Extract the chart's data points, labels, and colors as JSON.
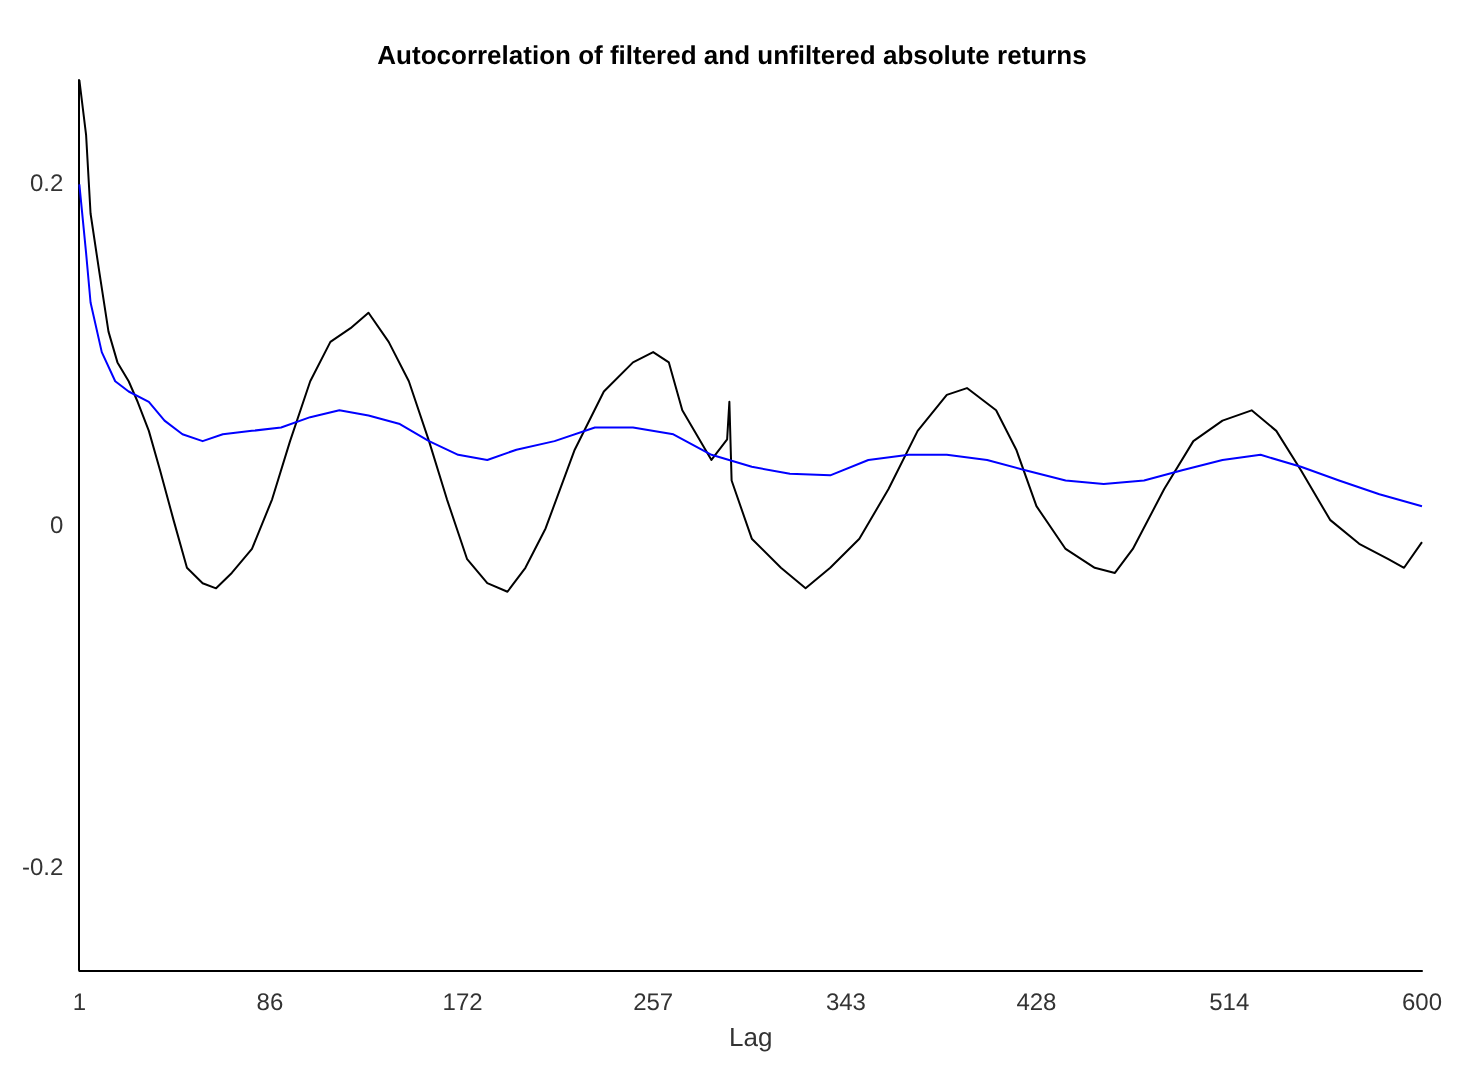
{
  "chart_data": {
    "type": "line",
    "title": "Autocorrelation of filtered and unfiltered absolute returns",
    "xlabel": "Lag",
    "xlim": [
      1,
      600
    ],
    "xticks": [
      1,
      86,
      172,
      257,
      343,
      428,
      514,
      600
    ],
    "ylim": [
      -0.26,
      0.26
    ],
    "yticks": [
      -0.2,
      0,
      0.2
    ],
    "grid": false,
    "marker": "none",
    "line_style": "solid",
    "series": [
      {
        "color": "#000000",
        "x": [
          1,
          4,
          6,
          10,
          14,
          18,
          23,
          27,
          32,
          37,
          43,
          49,
          56,
          62,
          69,
          78,
          87,
          95,
          104,
          113,
          122,
          130,
          139,
          148,
          157,
          165,
          174,
          183,
          192,
          200,
          209,
          222,
          235,
          248,
          257,
          264,
          270,
          283,
          290,
          291,
          292,
          301,
          314,
          325,
          336,
          349,
          362,
          375,
          388,
          397,
          410,
          419,
          428,
          441,
          454,
          463,
          471,
          485,
          498,
          511,
          524,
          535,
          546,
          559,
          572,
          585,
          592,
          600
        ],
        "values": [
          0.26,
          0.228,
          0.182,
          0.147,
          0.113,
          0.095,
          0.084,
          0.072,
          0.055,
          0.032,
          0.003,
          -0.025,
          -0.034,
          -0.037,
          -0.028,
          -0.014,
          0.015,
          0.049,
          0.084,
          0.107,
          0.115,
          0.124,
          0.107,
          0.084,
          0.049,
          0.015,
          -0.02,
          -0.034,
          -0.039,
          -0.025,
          -0.002,
          0.044,
          0.078,
          0.095,
          0.101,
          0.095,
          0.067,
          0.038,
          0.05,
          0.072,
          0.026,
          -0.008,
          -0.025,
          -0.037,
          -0.025,
          -0.008,
          0.021,
          0.055,
          0.076,
          0.08,
          0.067,
          0.044,
          0.011,
          -0.014,
          -0.025,
          -0.028,
          -0.014,
          0.021,
          0.049,
          0.061,
          0.067,
          0.055,
          0.032,
          0.003,
          -0.011,
          -0.02,
          -0.025,
          -0.01
        ]
      },
      {
        "color": "#0000ff",
        "x": [
          1,
          4,
          6,
          11,
          17,
          23,
          32,
          39,
          47,
          56,
          65,
          78,
          91,
          104,
          117,
          130,
          144,
          157,
          170,
          183,
          196,
          213,
          231,
          248,
          266,
          283,
          301,
          318,
          336,
          353,
          371,
          388,
          406,
          423,
          441,
          458,
          476,
          493,
          511,
          528,
          546,
          563,
          581,
          600
        ],
        "values": [
          0.199,
          0.159,
          0.13,
          0.101,
          0.084,
          0.078,
          0.072,
          0.061,
          0.053,
          0.049,
          0.053,
          0.055,
          0.057,
          0.063,
          0.067,
          0.064,
          0.059,
          0.049,
          0.041,
          0.038,
          0.044,
          0.049,
          0.057,
          0.057,
          0.053,
          0.041,
          0.034,
          0.03,
          0.029,
          0.038,
          0.041,
          0.041,
          0.038,
          0.032,
          0.026,
          0.024,
          0.026,
          0.032,
          0.038,
          0.041,
          0.034,
          0.026,
          0.018,
          0.011
        ]
      }
    ]
  }
}
